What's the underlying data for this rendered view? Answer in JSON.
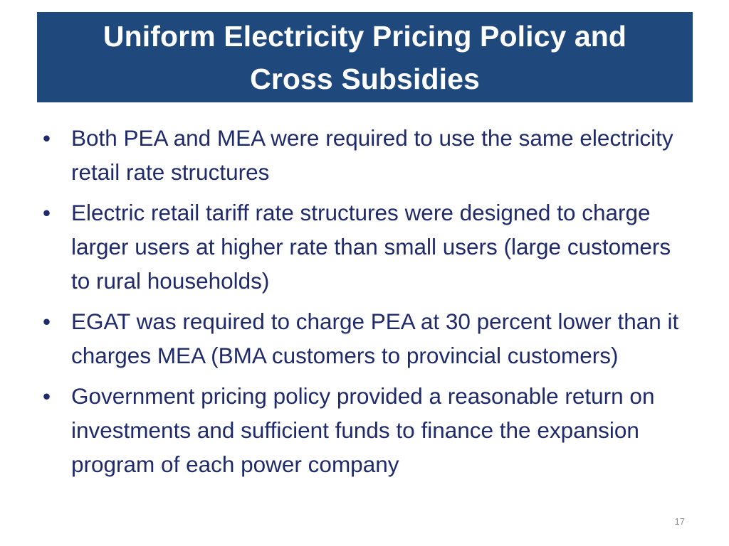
{
  "slide": {
    "title": "Uniform Electricity Pricing Policy and Cross Subsidies",
    "bullet_glyph": "•",
    "bullets": [
      {
        "text": "Both PEA and MEA were required to use the same electricity retail rate structures"
      },
      {
        "text": "Electric retail tariff rate structures were designed to charge larger users at higher rate than small users (large customers to rural households)"
      },
      {
        "text": "EGAT was required to charge PEA at 30 percent lower than it charges MEA (BMA customers to provincial customers)"
      },
      {
        "text": "Government pricing policy provided a reasonable return on investments and sufficient funds to finance the expansion program of each power company"
      }
    ],
    "page_number": "17"
  },
  "colors": {
    "title_background": "#1f497d",
    "title_text": "#ffffff",
    "body_text": "#1f2a6b",
    "page_number": "#8c8c8c"
  }
}
